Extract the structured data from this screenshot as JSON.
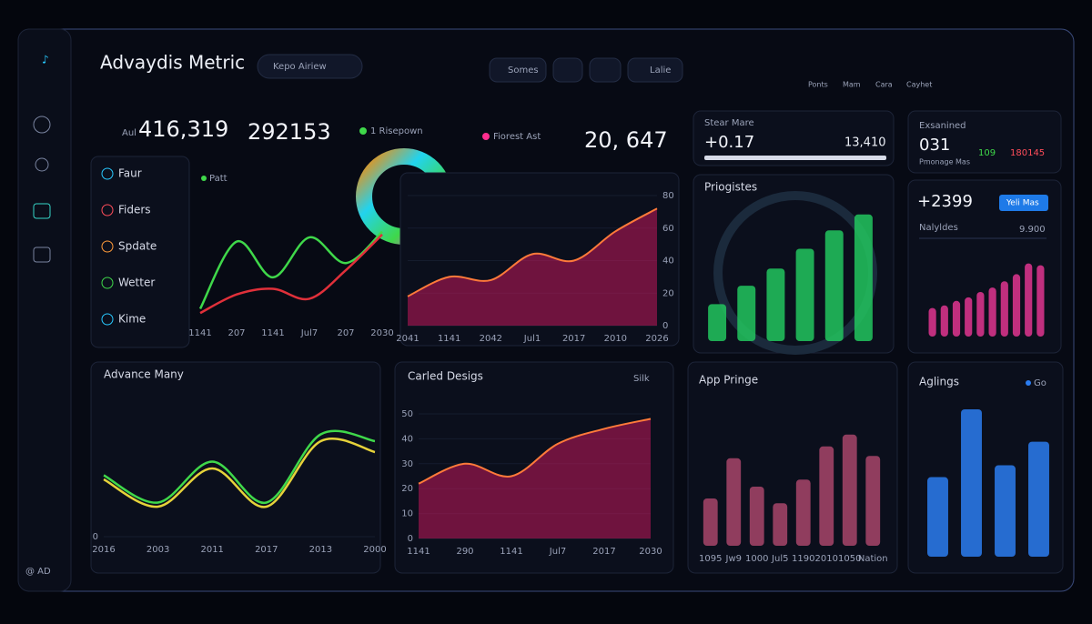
{
  "header": {
    "title": "Advaydis Metric",
    "search": "Kepo Airiew",
    "tabs": [
      "Somes",
      "Lalie"
    ],
    "nav": [
      "Ponts",
      "Mam",
      "Cara",
      "Cayhet"
    ]
  },
  "sidebar": {
    "footer": "@ AD"
  },
  "stats": {
    "label_a": "Aul",
    "value_a": "416,319",
    "value_b": "292153",
    "legend_a": "1 Risepown",
    "legend_b": "Fiorest Ast",
    "value_c": "20, 647",
    "stear_label": "Stear Mare",
    "stear_value": "+0.17",
    "stear_count": "13,410",
    "exam_label": "Exsanined",
    "exam_value": "031",
    "exam_sub": "Pmonage Mas",
    "exam_a": "109",
    "exam_b": "180145",
    "plus_value": "+2399",
    "plus_button": "Yeli Mas",
    "plus_label": "Nalyldes",
    "plus_count": "9.900"
  },
  "menu": [
    "Faur",
    "Fiders",
    "Spdate",
    "Wetter",
    "Kime"
  ],
  "charts": [
    {
      "type": "line",
      "legend": "Patt",
      "categories": [
        "1141",
        "207",
        "1141",
        "Jul7",
        "207",
        "2030"
      ],
      "ylim": [
        0,
        100
      ],
      "series": [
        {
          "color": "#3fd84a",
          "values": [
            8,
            55,
            30,
            58,
            40,
            62
          ]
        },
        {
          "color": "#e0303a",
          "values": [
            5,
            18,
            22,
            15,
            35,
            60
          ]
        }
      ]
    },
    {
      "type": "area",
      "categories": [
        "2041",
        "1141",
        "2042",
        "Jul1",
        "2017",
        "2010",
        "2026"
      ],
      "ylim": [
        0,
        80
      ],
      "yticks": [
        0,
        20,
        40,
        60,
        80
      ],
      "series": [
        {
          "color": "#c2185b",
          "values": [
            18,
            30,
            28,
            44,
            40,
            58,
            72
          ]
        }
      ]
    },
    {
      "type": "bar",
      "title": "Priogistes",
      "ylim": [
        0,
        100
      ],
      "series": [
        {
          "color": "#22c55e",
          "values": [
            28,
            42,
            55,
            70,
            84,
            96
          ]
        }
      ]
    },
    {
      "type": "bar",
      "ylim": [
        0,
        100
      ],
      "series": [
        {
          "color": "#e0358f",
          "values": [
            32,
            35,
            40,
            44,
            50,
            55,
            62,
            70,
            82,
            80
          ]
        }
      ]
    },
    {
      "type": "line",
      "title": "Advance Many",
      "categories": [
        "2016",
        "2003",
        "2011",
        "2017",
        "2013",
        "2000"
      ],
      "ylim": [
        0,
        100
      ],
      "yticks": [
        0
      ],
      "series": [
        {
          "color": "#3fd84a",
          "values": [
            45,
            25,
            55,
            25,
            75,
            70
          ]
        },
        {
          "color": "#e6d23a",
          "values": [
            42,
            22,
            50,
            22,
            70,
            62
          ]
        }
      ]
    },
    {
      "type": "area",
      "title": "Carled Desigs",
      "button": "Silk",
      "categories": [
        "1141",
        "290",
        "1141",
        "Jul7",
        "2017",
        "2030"
      ],
      "ylim": [
        0,
        50
      ],
      "yticks": [
        0,
        10,
        20,
        30,
        40,
        50
      ],
      "series": [
        {
          "color": "#c2185b",
          "values": [
            22,
            30,
            25,
            38,
            44,
            48
          ]
        }
      ]
    },
    {
      "type": "bar",
      "title": "App Pringe",
      "categories": [
        "1095",
        "Jw9",
        "1000",
        "Jul5",
        "1190",
        "2010",
        "1050",
        "Nation"
      ],
      "ylim": [
        0,
        100
      ],
      "series": [
        {
          "color": "#a8456a",
          "values": [
            40,
            74,
            50,
            36,
            56,
            84,
            94,
            76
          ]
        }
      ]
    },
    {
      "type": "bar",
      "title": "Aglings",
      "legend": "Go",
      "ylim": [
        0,
        100
      ],
      "series": [
        {
          "color": "#2b7cf0",
          "values": [
            54,
            100,
            62,
            78
          ]
        }
      ]
    }
  ]
}
